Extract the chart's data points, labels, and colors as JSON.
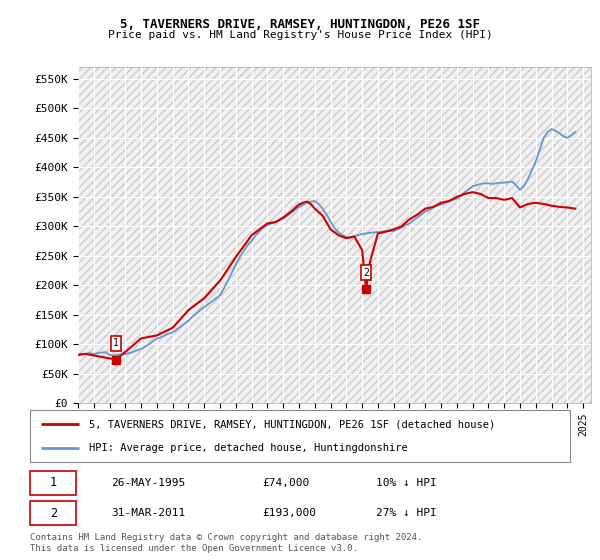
{
  "title": "5, TAVERNERS DRIVE, RAMSEY, HUNTINGDON, PE26 1SF",
  "subtitle": "Price paid vs. HM Land Registry's House Price Index (HPI)",
  "ylabel_ticks": [
    "£0",
    "£50K",
    "£100K",
    "£150K",
    "£200K",
    "£250K",
    "£300K",
    "£350K",
    "£400K",
    "£450K",
    "£500K",
    "£550K"
  ],
  "ytick_values": [
    0,
    50000,
    100000,
    150000,
    200000,
    250000,
    300000,
    350000,
    400000,
    450000,
    500000,
    550000
  ],
  "ylim": [
    0,
    570000
  ],
  "hpi_color": "#6699cc",
  "price_color": "#cc0000",
  "marker_color": "#cc0000",
  "legend_label_price": "5, TAVERNERS DRIVE, RAMSEY, HUNTINGDON, PE26 1SF (detached house)",
  "legend_label_hpi": "HPI: Average price, detached house, Huntingdonshire",
  "transaction1_date": "26-MAY-1995",
  "transaction1_price": "£74,000",
  "transaction1_pct": "10% ↓ HPI",
  "transaction2_date": "31-MAR-2011",
  "transaction2_price": "£193,000",
  "transaction2_pct": "27% ↓ HPI",
  "footer": "Contains HM Land Registry data © Crown copyright and database right 2024.\nThis data is licensed under the Open Government Licence v3.0.",
  "bg_color": "#ffffff",
  "plot_bg_color": "#f0f0f0",
  "grid_color": "#ffffff",
  "hpi_data": [
    [
      1993.0,
      82000
    ],
    [
      1993.25,
      83500
    ],
    [
      1993.5,
      84000
    ],
    [
      1993.75,
      85000
    ],
    [
      1994.0,
      83500
    ],
    [
      1994.25,
      85000
    ],
    [
      1994.5,
      86000
    ],
    [
      1994.75,
      86500
    ],
    [
      1995.0,
      82000
    ],
    [
      1995.25,
      81000
    ],
    [
      1995.5,
      82000
    ],
    [
      1995.75,
      83000
    ],
    [
      1996.0,
      83500
    ],
    [
      1996.25,
      85000
    ],
    [
      1996.5,
      87000
    ],
    [
      1996.75,
      90000
    ],
    [
      1997.0,
      92000
    ],
    [
      1997.25,
      96000
    ],
    [
      1997.5,
      100000
    ],
    [
      1997.75,
      105000
    ],
    [
      1998.0,
      110000
    ],
    [
      1998.25,
      112000
    ],
    [
      1998.5,
      115000
    ],
    [
      1998.75,
      118000
    ],
    [
      1999.0,
      120000
    ],
    [
      1999.25,
      125000
    ],
    [
      1999.5,
      130000
    ],
    [
      1999.75,
      135000
    ],
    [
      2000.0,
      140000
    ],
    [
      2000.25,
      147000
    ],
    [
      2000.5,
      152000
    ],
    [
      2000.75,
      158000
    ],
    [
      2001.0,
      163000
    ],
    [
      2001.25,
      168000
    ],
    [
      2001.5,
      173000
    ],
    [
      2001.75,
      178000
    ],
    [
      2002.0,
      183000
    ],
    [
      2002.25,
      195000
    ],
    [
      2002.5,
      208000
    ],
    [
      2002.75,
      222000
    ],
    [
      2003.0,
      235000
    ],
    [
      2003.25,
      248000
    ],
    [
      2003.5,
      258000
    ],
    [
      2003.75,
      268000
    ],
    [
      2004.0,
      275000
    ],
    [
      2004.25,
      285000
    ],
    [
      2004.5,
      292000
    ],
    [
      2004.75,
      298000
    ],
    [
      2005.0,
      302000
    ],
    [
      2005.25,
      305000
    ],
    [
      2005.5,
      308000
    ],
    [
      2005.75,
      310000
    ],
    [
      2006.0,
      313000
    ],
    [
      2006.25,
      318000
    ],
    [
      2006.5,
      323000
    ],
    [
      2006.75,
      328000
    ],
    [
      2007.0,
      333000
    ],
    [
      2007.25,
      337000
    ],
    [
      2007.5,
      340000
    ],
    [
      2007.75,
      342000
    ],
    [
      2008.0,
      343000
    ],
    [
      2008.25,
      338000
    ],
    [
      2008.5,
      330000
    ],
    [
      2008.75,
      320000
    ],
    [
      2009.0,
      308000
    ],
    [
      2009.25,
      297000
    ],
    [
      2009.5,
      290000
    ],
    [
      2009.75,
      285000
    ],
    [
      2010.0,
      282000
    ],
    [
      2010.25,
      280000
    ],
    [
      2010.5,
      283000
    ],
    [
      2010.75,
      285000
    ],
    [
      2011.0,
      287000
    ],
    [
      2011.25,
      288000
    ],
    [
      2011.5,
      289000
    ],
    [
      2011.75,
      290000
    ],
    [
      2012.0,
      290000
    ],
    [
      2012.25,
      291000
    ],
    [
      2012.5,
      292000
    ],
    [
      2012.75,
      292000
    ],
    [
      2013.0,
      292000
    ],
    [
      2013.25,
      295000
    ],
    [
      2013.5,
      298000
    ],
    [
      2013.75,
      302000
    ],
    [
      2014.0,
      305000
    ],
    [
      2014.25,
      310000
    ],
    [
      2014.5,
      315000
    ],
    [
      2014.75,
      320000
    ],
    [
      2015.0,
      325000
    ],
    [
      2015.25,
      328000
    ],
    [
      2015.5,
      332000
    ],
    [
      2015.75,
      335000
    ],
    [
      2016.0,
      337000
    ],
    [
      2016.25,
      340000
    ],
    [
      2016.5,
      342000
    ],
    [
      2016.75,
      345000
    ],
    [
      2017.0,
      347000
    ],
    [
      2017.25,
      352000
    ],
    [
      2017.5,
      358000
    ],
    [
      2017.75,
      363000
    ],
    [
      2018.0,
      368000
    ],
    [
      2018.25,
      370000
    ],
    [
      2018.5,
      372000
    ],
    [
      2018.75,
      373000
    ],
    [
      2019.0,
      373000
    ],
    [
      2019.25,
      372000
    ],
    [
      2019.5,
      373000
    ],
    [
      2019.75,
      374000
    ],
    [
      2020.0,
      374000
    ],
    [
      2020.25,
      375000
    ],
    [
      2020.5,
      376000
    ],
    [
      2020.75,
      370000
    ],
    [
      2021.0,
      362000
    ],
    [
      2021.25,
      368000
    ],
    [
      2021.5,
      380000
    ],
    [
      2021.75,
      395000
    ],
    [
      2022.0,
      410000
    ],
    [
      2022.25,
      430000
    ],
    [
      2022.5,
      450000
    ],
    [
      2022.75,
      460000
    ],
    [
      2023.0,
      465000
    ],
    [
      2023.25,
      462000
    ],
    [
      2023.5,
      458000
    ],
    [
      2023.75,
      453000
    ],
    [
      2024.0,
      450000
    ],
    [
      2024.25,
      455000
    ],
    [
      2024.5,
      460000
    ]
  ],
  "price_data": [
    [
      1993.0,
      82000
    ],
    [
      1993.5,
      83500
    ],
    [
      1995.4,
      74000
    ],
    [
      1996.0,
      87000
    ],
    [
      1997.0,
      110000
    ],
    [
      1998.0,
      115000
    ],
    [
      1999.0,
      128000
    ],
    [
      2000.0,
      158000
    ],
    [
      2001.0,
      178000
    ],
    [
      2002.0,
      208000
    ],
    [
      2003.0,
      248000
    ],
    [
      2004.0,
      285000
    ],
    [
      2004.5,
      295000
    ],
    [
      2005.0,
      305000
    ],
    [
      2005.5,
      307000
    ],
    [
      2006.0,
      315000
    ],
    [
      2006.5,
      325000
    ],
    [
      2007.0,
      337000
    ],
    [
      2007.25,
      340000
    ],
    [
      2007.5,
      342000
    ],
    [
      2007.75,
      338000
    ],
    [
      2008.0,
      330000
    ],
    [
      2008.5,
      318000
    ],
    [
      2009.0,
      295000
    ],
    [
      2009.5,
      285000
    ],
    [
      2010.0,
      280000
    ],
    [
      2010.5,
      283000
    ],
    [
      2011.0,
      260000
    ],
    [
      2011.25,
      193000
    ],
    [
      2011.5,
      240000
    ],
    [
      2012.0,
      288000
    ],
    [
      2012.5,
      291000
    ],
    [
      2013.0,
      295000
    ],
    [
      2013.5,
      300000
    ],
    [
      2014.0,
      312000
    ],
    [
      2014.5,
      320000
    ],
    [
      2015.0,
      330000
    ],
    [
      2015.5,
      333000
    ],
    [
      2016.0,
      340000
    ],
    [
      2016.5,
      343000
    ],
    [
      2017.0,
      350000
    ],
    [
      2017.5,
      355000
    ],
    [
      2018.0,
      358000
    ],
    [
      2018.5,
      355000
    ],
    [
      2019.0,
      348000
    ],
    [
      2019.5,
      348000
    ],
    [
      2020.0,
      345000
    ],
    [
      2020.5,
      348000
    ],
    [
      2021.0,
      332000
    ],
    [
      2021.5,
      338000
    ],
    [
      2022.0,
      340000
    ],
    [
      2022.5,
      338000
    ],
    [
      2023.0,
      335000
    ],
    [
      2023.5,
      333000
    ],
    [
      2024.0,
      332000
    ],
    [
      2024.5,
      330000
    ]
  ],
  "transaction1_year": 1995.4,
  "transaction1_value": 74000,
  "transaction2_year": 2011.25,
  "transaction2_value": 193000
}
